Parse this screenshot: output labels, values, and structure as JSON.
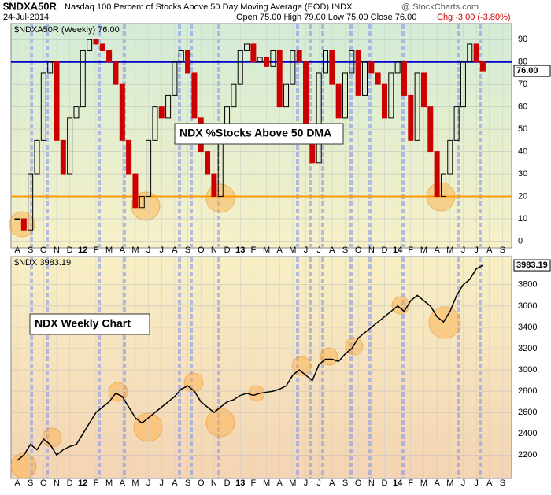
{
  "header": {
    "symbol": "$NDXA50R",
    "title": "Nasdaq 100 Percent of Stocks Above 50 Day Moving Average (EOD) INDX",
    "date": "24-Jul-2014",
    "quote": "Open 75.00  High 79.00  Low 75.00  Close 76.00",
    "change": "Chg -3.00 (-3.80%)",
    "watermark": "@ StockCharts.com"
  },
  "chart_data": [
    {
      "type": "candlestick",
      "panel_label": "$NDXA50R (Weekly) 76.00",
      "annotation": "NDX %Stocks Above 50 DMA",
      "last_label": "76.00",
      "categories": [
        "A",
        null,
        "S",
        null,
        "O",
        null,
        "N",
        null,
        "D",
        null,
        "12",
        null,
        "F",
        null,
        "M",
        null,
        "A",
        null,
        "M",
        null,
        "J",
        null,
        "J",
        null,
        "A",
        null,
        "S",
        null,
        "O",
        null,
        "N",
        null,
        "D",
        null,
        "13",
        null,
        "F",
        null,
        "M",
        null,
        "A",
        null,
        "M",
        null,
        "J",
        null,
        "J",
        null,
        "A",
        null,
        "S",
        null,
        "O",
        null,
        "N",
        null,
        "D",
        null,
        "14",
        null,
        "F",
        null,
        "M",
        null,
        "A",
        null,
        "M",
        null,
        "J",
        null,
        "J",
        null,
        "A",
        null,
        "S",
        null
      ],
      "values": [
        10,
        5,
        30,
        45,
        75,
        80,
        45,
        30,
        55,
        60,
        85,
        90,
        88,
        85,
        80,
        70,
        45,
        30,
        15,
        20,
        45,
        60,
        55,
        65,
        80,
        85,
        75,
        55,
        40,
        30,
        20,
        45,
        60,
        70,
        85,
        88,
        80,
        82,
        78,
        85,
        60,
        70,
        85,
        80,
        45,
        35,
        75,
        85,
        70,
        55,
        75,
        85,
        65,
        80,
        75,
        70,
        55,
        75,
        80,
        65,
        45,
        75,
        60,
        40,
        20,
        30,
        45,
        60,
        80,
        88,
        80,
        76,
        null,
        null,
        null,
        null
      ],
      "up_color": "#000000",
      "down_color": "#cc0000",
      "ylim": [
        -3,
        95
      ],
      "yticks": [
        0,
        10,
        20,
        30,
        40,
        50,
        60,
        70,
        80,
        90
      ],
      "hlines": [
        {
          "value": 80,
          "color": "#0000cc"
        },
        {
          "value": 20,
          "color": "#ff9900"
        }
      ]
    },
    {
      "type": "line",
      "panel_label": "$NDX 3983.19",
      "annotation": "NDX Weekly Chart",
      "last_label": "3983.19",
      "categories": [
        "A",
        null,
        "S",
        null,
        "O",
        null,
        "N",
        null,
        "D",
        null,
        "12",
        null,
        "F",
        null,
        "M",
        null,
        "A",
        null,
        "M",
        null,
        "J",
        null,
        "J",
        null,
        "A",
        null,
        "S",
        null,
        "O",
        null,
        "N",
        null,
        "D",
        null,
        "13",
        null,
        "F",
        null,
        "M",
        null,
        "A",
        null,
        "M",
        null,
        "J",
        null,
        "J",
        null,
        "A",
        null,
        "S",
        null,
        "O",
        null,
        "N",
        null,
        "D",
        null,
        "14",
        null,
        "F",
        null,
        "M",
        null,
        "A",
        null,
        "M",
        null,
        "J",
        null,
        "J",
        null,
        "A",
        null,
        "S",
        null
      ],
      "values": [
        2150,
        2200,
        2300,
        2250,
        2350,
        2300,
        2200,
        2250,
        2280,
        2300,
        2400,
        2500,
        2600,
        2650,
        2700,
        2780,
        2750,
        2650,
        2550,
        2500,
        2550,
        2600,
        2650,
        2700,
        2750,
        2820,
        2850,
        2800,
        2700,
        2650,
        2600,
        2650,
        2700,
        2720,
        2760,
        2780,
        2760,
        2780,
        2790,
        2800,
        2820,
        2850,
        2950,
        3000,
        2950,
        2900,
        3050,
        3100,
        3100,
        3080,
        3150,
        3200,
        3300,
        3350,
        3400,
        3450,
        3500,
        3550,
        3600,
        3550,
        3650,
        3700,
        3650,
        3600,
        3500,
        3450,
        3550,
        3700,
        3800,
        3850,
        3950,
        3983.19,
        null,
        null,
        null,
        null
      ],
      "color": "#000000",
      "ylim": [
        1980,
        4065
      ],
      "yticks": [
        2200,
        2400,
        2600,
        2800,
        3000,
        3200,
        3400,
        3600,
        3800
      ]
    }
  ]
}
